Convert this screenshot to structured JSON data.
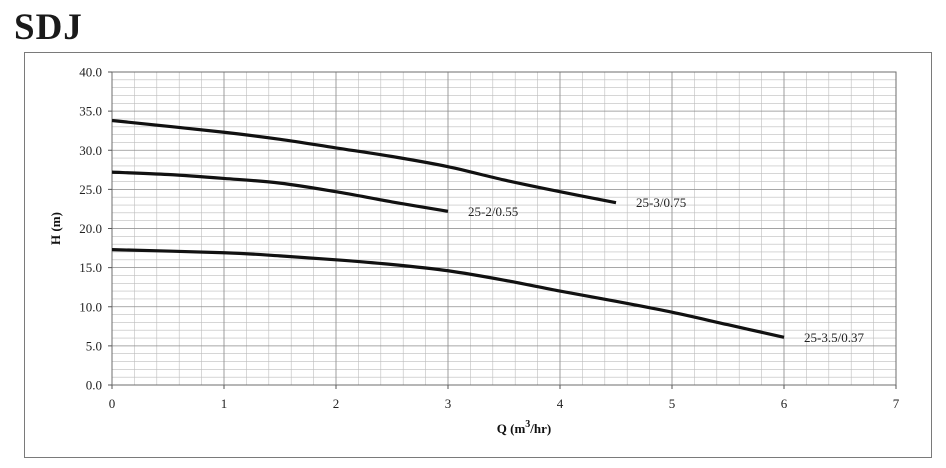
{
  "header": {
    "title": "SDJ"
  },
  "chart_data": {
    "type": "line",
    "title": "SDJ",
    "xlabel": "Q (m3/hr)",
    "xlabel_parts": {
      "pre": "Q (m",
      "sup": "3",
      "post": "/hr)"
    },
    "ylabel": "H (m)",
    "xlim": [
      0,
      7
    ],
    "ylim": [
      0,
      40
    ],
    "x_ticks": [
      0,
      1,
      2,
      3,
      4,
      5,
      6,
      7
    ],
    "y_ticks": [
      "0.0",
      "5.0",
      "10.0",
      "15.0",
      "20.0",
      "25.0",
      "30.0",
      "35.0",
      "40.0"
    ],
    "grid": true,
    "series_color": "#111111",
    "grid_color": "#bdbdbd",
    "series": [
      {
        "name": "25-3/0.75",
        "x": [
          0,
          1,
          1.5,
          2,
          2.5,
          3,
          3.5,
          4,
          4.5
        ],
        "y": [
          33.8,
          32.3,
          31.4,
          30.3,
          29.2,
          27.9,
          26.2,
          24.7,
          23.3
        ]
      },
      {
        "name": "25-2/0.55",
        "x": [
          0,
          0.5,
          1,
          1.5,
          2,
          2.5,
          3
        ],
        "y": [
          27.2,
          26.9,
          26.4,
          25.8,
          24.7,
          23.4,
          22.2
        ]
      },
      {
        "name": "25-3.5/0.37",
        "x": [
          0,
          1,
          1.5,
          2,
          2.5,
          3,
          3.5,
          4,
          4.5,
          5,
          5.5,
          6
        ],
        "y": [
          17.3,
          16.9,
          16.5,
          16.0,
          15.4,
          14.6,
          13.4,
          12.0,
          10.7,
          9.3,
          7.7,
          6.1
        ]
      }
    ]
  }
}
